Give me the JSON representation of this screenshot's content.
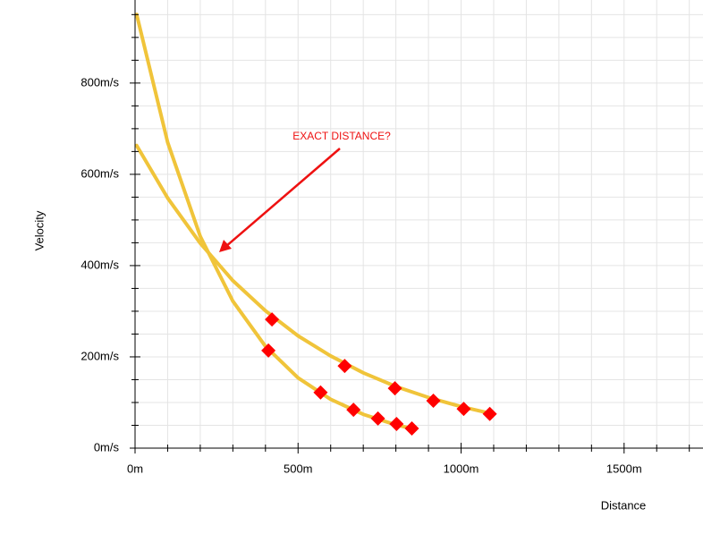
{
  "chart_data": {
    "type": "line",
    "annotation": "EXACT DISTANCE?",
    "xlabel": "Distance",
    "ylabel": "Velocity",
    "xlim": [
      0,
      1742
    ],
    "ylim": [
      0,
      982
    ],
    "xticks": [
      {
        "value": 0,
        "label": "0m"
      },
      {
        "value": 500,
        "label": "500m"
      },
      {
        "value": 1000,
        "label": "1000m"
      },
      {
        "value": 1500,
        "label": "1500m"
      }
    ],
    "yticks": [
      {
        "value": 0,
        "label": "0m/s"
      },
      {
        "value": 200,
        "label": "200m/s"
      },
      {
        "value": 400,
        "label": "400m/s"
      },
      {
        "value": 600,
        "label": "600m/s"
      },
      {
        "value": 800,
        "label": "800m/s"
      }
    ],
    "xminorticks": [
      100,
      200,
      300,
      400,
      600,
      700,
      800,
      900,
      1100,
      1200,
      1300,
      1400,
      1600,
      1700
    ],
    "yminorticks": [
      50,
      100,
      150,
      250,
      300,
      350,
      450,
      500,
      550,
      650,
      700,
      750,
      850,
      900,
      950
    ],
    "grid": true,
    "series": [
      {
        "type": "line",
        "color": "#f0c43a",
        "x": [
          5,
          100,
          200,
          300,
          400,
          500,
          600,
          700,
          800,
          900,
          1000,
          1090
        ],
        "values": [
          663,
          548,
          449,
          367,
          301,
          246,
          202,
          165,
          135,
          111,
          91,
          76
        ]
      },
      {
        "type": "line",
        "color": "#f0c43a",
        "x": [
          5,
          100,
          200,
          300,
          400,
          500,
          600,
          700,
          800,
          860
        ],
        "values": [
          950,
          670,
          464,
          322,
          223,
          154,
          107,
          74,
          51,
          41
        ]
      },
      {
        "type": "scatter",
        "color": "#ff0000",
        "marker": "diamond",
        "x": [
          420,
          643,
          797,
          915,
          1008,
          1088
        ],
        "values": [
          282,
          180,
          131,
          104,
          86,
          75
        ]
      },
      {
        "type": "scatter",
        "color": "#ff0000",
        "marker": "diamond",
        "x": [
          409,
          569,
          670,
          745,
          802,
          849
        ],
        "values": [
          214,
          122,
          84,
          65,
          53,
          43
        ]
      }
    ]
  }
}
